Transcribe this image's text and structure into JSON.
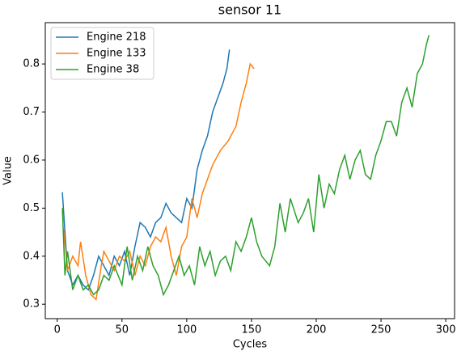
{
  "chart_data": {
    "type": "line",
    "title": "sensor 11",
    "xlabel": "Cycles",
    "ylabel": "Value",
    "xlim": [
      -9.2,
      306.8
    ],
    "ylim": [
      0.27,
      0.886
    ],
    "xticks": [
      0,
      50,
      100,
      150,
      200,
      250,
      300
    ],
    "yticks": [
      0.3,
      0.4,
      0.5,
      0.6,
      0.7,
      0.8
    ],
    "legend": "upper left",
    "series": [
      {
        "name": "Engine 218",
        "color": "#1f77b4",
        "x": [
          4,
          6,
          8,
          12,
          16,
          20,
          24,
          28,
          32,
          36,
          40,
          44,
          48,
          52,
          56,
          60,
          64,
          68,
          72,
          76,
          80,
          84,
          88,
          92,
          96,
          100,
          104,
          108,
          112,
          116,
          120,
          124,
          128,
          131,
          133
        ],
        "values": [
          0.533,
          0.45,
          0.37,
          0.34,
          0.36,
          0.34,
          0.33,
          0.36,
          0.4,
          0.38,
          0.36,
          0.4,
          0.38,
          0.41,
          0.36,
          0.42,
          0.47,
          0.46,
          0.44,
          0.47,
          0.48,
          0.51,
          0.49,
          0.48,
          0.47,
          0.52,
          0.5,
          0.58,
          0.62,
          0.65,
          0.7,
          0.73,
          0.76,
          0.79,
          0.83
        ]
      },
      {
        "name": "Engine 133",
        "color": "#ff7f0e",
        "x": [
          5,
          8,
          12,
          16,
          18,
          22,
          26,
          30,
          34,
          36,
          40,
          44,
          48,
          52,
          56,
          60,
          64,
          68,
          72,
          76,
          80,
          84,
          88,
          92,
          96,
          100,
          104,
          108,
          112,
          116,
          120,
          126,
          132,
          138,
          142,
          146,
          149,
          152
        ],
        "values": [
          0.455,
          0.37,
          0.4,
          0.38,
          0.43,
          0.36,
          0.32,
          0.31,
          0.38,
          0.41,
          0.39,
          0.37,
          0.4,
          0.39,
          0.41,
          0.36,
          0.4,
          0.38,
          0.42,
          0.44,
          0.43,
          0.46,
          0.4,
          0.36,
          0.42,
          0.44,
          0.52,
          0.48,
          0.53,
          0.56,
          0.59,
          0.62,
          0.64,
          0.67,
          0.72,
          0.76,
          0.8,
          0.79
        ]
      },
      {
        "name": "Engine 38",
        "color": "#2ca02c",
        "x": [
          4,
          6,
          8,
          12,
          16,
          20,
          24,
          28,
          32,
          36,
          40,
          44,
          50,
          54,
          58,
          62,
          66,
          70,
          74,
          78,
          82,
          86,
          90,
          94,
          98,
          102,
          106,
          110,
          114,
          118,
          122,
          126,
          130,
          134,
          138,
          142,
          146,
          150,
          154,
          158,
          164,
          168,
          172,
          176,
          180,
          186,
          190,
          194,
          198,
          202,
          206,
          210,
          214,
          218,
          222,
          226,
          230,
          234,
          238,
          242,
          246,
          250,
          254,
          258,
          262,
          266,
          270,
          274,
          278,
          282,
          285,
          287
        ],
        "values": [
          0.5,
          0.36,
          0.41,
          0.33,
          0.36,
          0.33,
          0.34,
          0.32,
          0.33,
          0.36,
          0.35,
          0.38,
          0.34,
          0.42,
          0.35,
          0.4,
          0.37,
          0.42,
          0.38,
          0.36,
          0.32,
          0.34,
          0.37,
          0.4,
          0.36,
          0.38,
          0.34,
          0.42,
          0.38,
          0.41,
          0.36,
          0.39,
          0.4,
          0.37,
          0.43,
          0.41,
          0.44,
          0.48,
          0.43,
          0.4,
          0.38,
          0.42,
          0.51,
          0.45,
          0.52,
          0.47,
          0.49,
          0.52,
          0.45,
          0.57,
          0.5,
          0.55,
          0.53,
          0.58,
          0.61,
          0.56,
          0.6,
          0.62,
          0.57,
          0.56,
          0.61,
          0.64,
          0.68,
          0.68,
          0.65,
          0.72,
          0.75,
          0.71,
          0.78,
          0.8,
          0.84,
          0.86
        ]
      }
    ]
  }
}
